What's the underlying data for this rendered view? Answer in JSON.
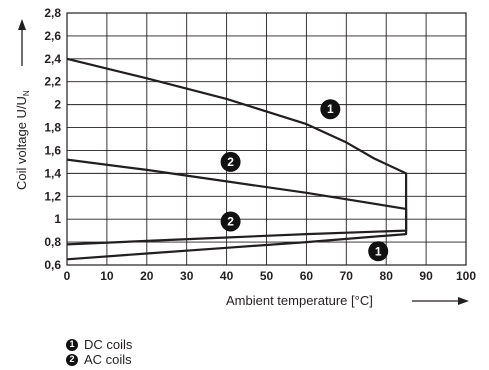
{
  "chart_data": {
    "type": "line",
    "xlabel": "Ambient temperature [°C]",
    "ylabel": "Coil voltage U/U",
    "ylabel_subscript": "N",
    "xlim": [
      0,
      100
    ],
    "ylim": [
      0.6,
      2.8
    ],
    "x_ticks": [
      "0",
      "10",
      "20",
      "30",
      "40",
      "50",
      "60",
      "70",
      "80",
      "90",
      "100"
    ],
    "y_ticks": [
      "0,6",
      "0,8",
      "1",
      "1,2",
      "1,4",
      "1,6",
      "1,8",
      "2",
      "2,2",
      "2,4",
      "2,6",
      "2,8"
    ],
    "grid": true,
    "series": [
      {
        "marker": "1",
        "label": "DC coils",
        "points": [
          [
            0,
            2.4
          ],
          [
            20,
            2.23
          ],
          [
            40,
            2.05
          ],
          [
            60,
            1.83
          ],
          [
            70,
            1.67
          ],
          [
            77,
            1.53
          ],
          [
            85,
            1.4
          ],
          [
            85,
            0.87
          ],
          [
            60,
            0.8
          ],
          [
            40,
            0.75
          ],
          [
            20,
            0.7
          ],
          [
            0,
            0.65
          ]
        ]
      },
      {
        "marker": "2",
        "label": "AC coils",
        "points": [
          [
            0,
            1.52
          ],
          [
            20,
            1.43
          ],
          [
            40,
            1.33
          ],
          [
            60,
            1.23
          ],
          [
            85,
            1.09
          ],
          [
            85,
            0.9
          ],
          [
            60,
            0.87
          ],
          [
            40,
            0.84
          ],
          [
            20,
            0.81
          ],
          [
            0,
            0.78
          ]
        ]
      }
    ],
    "markers": [
      {
        "text": "1",
        "x": 66,
        "y": 1.96
      },
      {
        "text": "2",
        "x": 41,
        "y": 1.5
      },
      {
        "text": "2",
        "x": 41,
        "y": 0.98
      },
      {
        "text": "1",
        "x": 78,
        "y": 0.72
      }
    ]
  },
  "legend": {
    "items": [
      {
        "marker": "1",
        "label": "DC coils"
      },
      {
        "marker": "2",
        "label": "AC coils"
      }
    ]
  }
}
